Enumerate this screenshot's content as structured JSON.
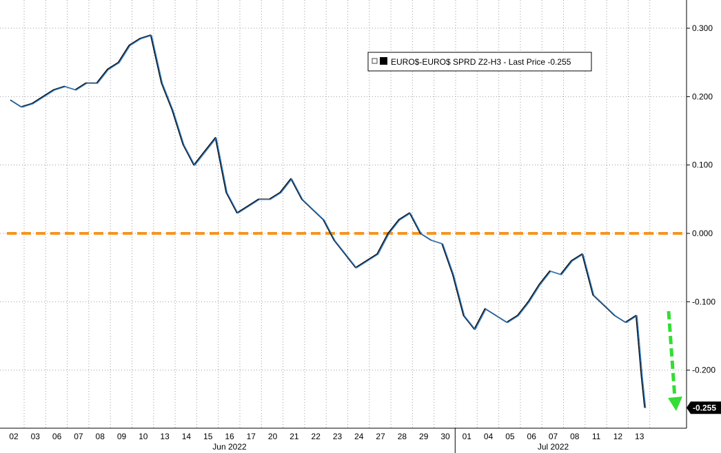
{
  "chart_data": {
    "type": "line",
    "title": "",
    "legend": {
      "position": "top-right",
      "entries": [
        "EURO$-EURO$ SPRD Z2-H3 - Last Price -0.255"
      ]
    },
    "y_ticks": [
      "0.300",
      "0.200",
      "0.100",
      "0.000",
      "-0.100",
      "-0.200"
    ],
    "y_tick_values": [
      0.3,
      0.2,
      0.1,
      0.0,
      -0.1,
      -0.2
    ],
    "ylim": [
      -0.28,
      0.34
    ],
    "x_ticks": [
      "02",
      "03",
      "06",
      "07",
      "08",
      "09",
      "10",
      "13",
      "14",
      "15",
      "16",
      "17",
      "20",
      "21",
      "22",
      "23",
      "24",
      "27",
      "28",
      "29",
      "30",
      "01",
      "04",
      "05",
      "06",
      "07",
      "08",
      "11",
      "12",
      "13"
    ],
    "x_groups": [
      {
        "label": "Jun 2022",
        "start": 0,
        "end": 20
      },
      {
        "label": "Jul 2022",
        "start": 21,
        "end": 29
      }
    ],
    "grid": true,
    "reference_line": {
      "value": 0.0,
      "color": "#f7941d",
      "style": "dashed"
    },
    "last_price": {
      "value": -0.255,
      "label": "-0.255"
    },
    "arrow": {
      "color": "#33dd33",
      "direction": "down"
    },
    "series": [
      {
        "name": "EURO$-EURO$ SPRD Z2-H3",
        "color": "#2f7cc8",
        "x": [
          0,
          0.5,
          1,
          1.5,
          2,
          2.5,
          3,
          3.5,
          4,
          4.5,
          5,
          5.5,
          6,
          6.5,
          7,
          7.5,
          8,
          8.5,
          9,
          9.5,
          10,
          10.5,
          11,
          11.5,
          12,
          12.5,
          13,
          13.5,
          14,
          14.5,
          15,
          15.5,
          16,
          16.5,
          17,
          17.5,
          18,
          18.5,
          19,
          19.5,
          20,
          20.5,
          21,
          21.5,
          22,
          22.5,
          23,
          23.5,
          24,
          24.5,
          25,
          25.5,
          26,
          26.5,
          27,
          27.5,
          28,
          28.5,
          29,
          29.25,
          29.4
        ],
        "y": [
          0.195,
          0.185,
          0.19,
          0.2,
          0.21,
          0.215,
          0.21,
          0.22,
          0.22,
          0.24,
          0.25,
          0.275,
          0.285,
          0.29,
          0.22,
          0.18,
          0.13,
          0.1,
          0.12,
          0.14,
          0.06,
          0.03,
          0.04,
          0.05,
          0.05,
          0.06,
          0.08,
          0.05,
          0.035,
          0.02,
          -0.01,
          -0.03,
          -0.05,
          -0.04,
          -0.03,
          0.0,
          0.02,
          0.03,
          0.0,
          -0.01,
          -0.015,
          -0.06,
          -0.12,
          -0.14,
          -0.11,
          -0.12,
          -0.13,
          -0.12,
          -0.1,
          -0.075,
          -0.055,
          -0.06,
          -0.04,
          -0.03,
          -0.09,
          -0.105,
          -0.12,
          -0.13,
          -0.12,
          -0.21,
          -0.255
        ]
      }
    ]
  }
}
